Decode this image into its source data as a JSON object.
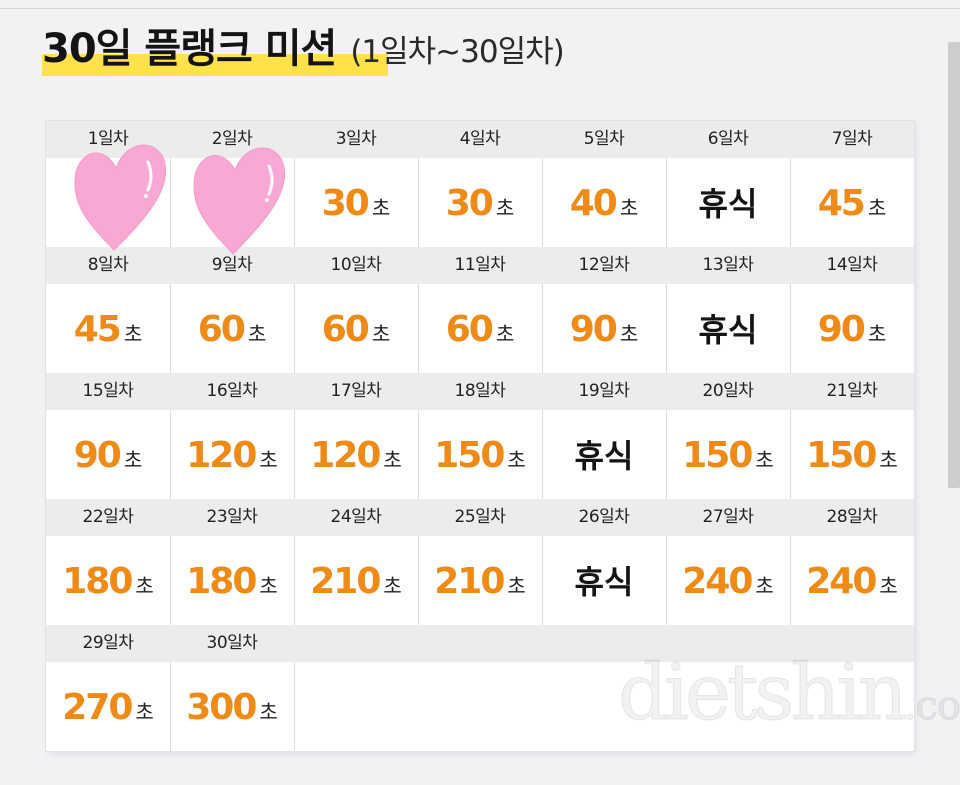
{
  "header": {
    "title": "30일 플랭크 미션",
    "subtitle": "(1일차~30일차)"
  },
  "unit_label": "초",
  "schedule": [
    {
      "day": "1일차",
      "value": "",
      "rest": false
    },
    {
      "day": "2일차",
      "value": "",
      "rest": false
    },
    {
      "day": "3일차",
      "value": "30",
      "rest": false
    },
    {
      "day": "4일차",
      "value": "30",
      "rest": false
    },
    {
      "day": "5일차",
      "value": "40",
      "rest": false
    },
    {
      "day": "6일차",
      "value": "휴식",
      "rest": true
    },
    {
      "day": "7일차",
      "value": "45",
      "rest": false
    },
    {
      "day": "8일차",
      "value": "45",
      "rest": false
    },
    {
      "day": "9일차",
      "value": "60",
      "rest": false
    },
    {
      "day": "10일차",
      "value": "60",
      "rest": false
    },
    {
      "day": "11일차",
      "value": "60",
      "rest": false
    },
    {
      "day": "12일차",
      "value": "90",
      "rest": false
    },
    {
      "day": "13일차",
      "value": "휴식",
      "rest": true
    },
    {
      "day": "14일차",
      "value": "90",
      "rest": false
    },
    {
      "day": "15일차",
      "value": "90",
      "rest": false
    },
    {
      "day": "16일차",
      "value": "120",
      "rest": false
    },
    {
      "day": "17일차",
      "value": "120",
      "rest": false
    },
    {
      "day": "18일차",
      "value": "150",
      "rest": false
    },
    {
      "day": "19일차",
      "value": "휴식",
      "rest": true
    },
    {
      "day": "20일차",
      "value": "150",
      "rest": false
    },
    {
      "day": "21일차",
      "value": "150",
      "rest": false
    },
    {
      "day": "22일차",
      "value": "180",
      "rest": false
    },
    {
      "day": "23일차",
      "value": "180",
      "rest": false
    },
    {
      "day": "24일차",
      "value": "210",
      "rest": false
    },
    {
      "day": "25일차",
      "value": "210",
      "rest": false
    },
    {
      "day": "26일차",
      "value": "휴식",
      "rest": true
    },
    {
      "day": "27일차",
      "value": "240",
      "rest": false
    },
    {
      "day": "28일차",
      "value": "240",
      "rest": false
    },
    {
      "day": "29일차",
      "value": "270",
      "rest": false
    },
    {
      "day": "30일차",
      "value": "300",
      "rest": false
    }
  ],
  "watermark": {
    "main": "dietshin",
    "suffix": ".com"
  },
  "colors": {
    "accent": "#ef8a17",
    "highlight": "#ffe14a",
    "heart": "#f9a8d4"
  }
}
